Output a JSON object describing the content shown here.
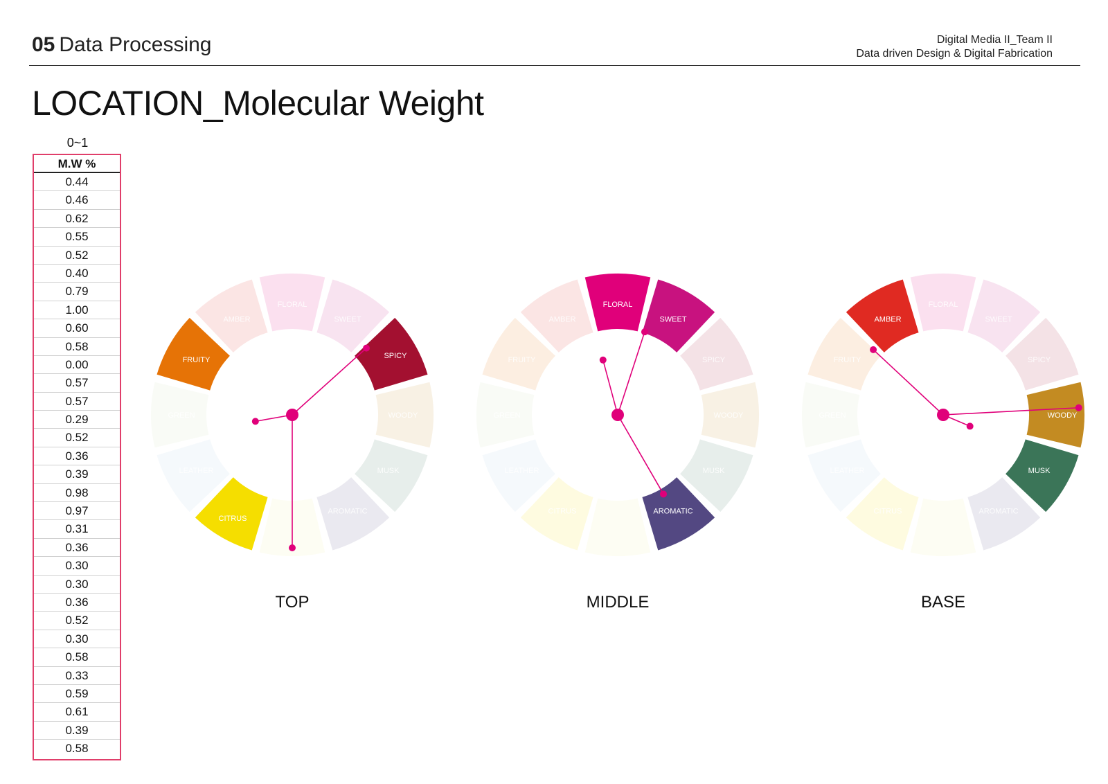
{
  "header": {
    "section_number": "05",
    "section_title": "Data Processing",
    "team_line": "Digital Media II_Team II",
    "course_line": "Data driven Design & Digital Fabrication"
  },
  "page_title": "LOCATION_Molecular Weight",
  "table": {
    "range_label": "0~1",
    "column_header": "M.W %",
    "values": [
      "0.44",
      "0.46",
      "0.62",
      "0.55",
      "0.52",
      "0.40",
      "0.79",
      "1.00",
      "0.60",
      "0.58",
      "0.00",
      "0.57",
      "0.57",
      "0.29",
      "0.52",
      "0.36",
      "0.39",
      "0.98",
      "0.97",
      "0.31",
      "0.36",
      "0.30",
      "0.30",
      "0.36",
      "0.52",
      "0.30",
      "0.58",
      "0.33",
      "0.59",
      "0.61",
      "0.39",
      "0.58"
    ],
    "border_color": "#e03e6a"
  },
  "segments": [
    {
      "label": "FLORAL",
      "color": "#e0007a"
    },
    {
      "label": "SWEET",
      "color": "#c8127f"
    },
    {
      "label": "SPICY",
      "color": "#a31030"
    },
    {
      "label": "WOODY",
      "color": "#c38b22"
    },
    {
      "label": "MUSK",
      "color": "#3b7558"
    },
    {
      "label": "AROMATIC",
      "color": "#534882"
    },
    {
      "label": "",
      "color": "#f2ef9a"
    },
    {
      "label": "CITRUS",
      "color": "#f5de00"
    },
    {
      "label": "LEATHER",
      "color": "#a9c9e4"
    },
    {
      "label": "GREEN",
      "color": "#c9ddb2"
    },
    {
      "label": "FRUITY",
      "color": "#e67306"
    },
    {
      "label": "AMBER",
      "color": "#e02a22"
    }
  ],
  "wheels": [
    {
      "name": "TOP",
      "highlighted": [
        "SPICY",
        "CITRUS",
        "FRUITY"
      ],
      "centered_labels": [
        "SPICY",
        "CITRUS"
      ]
    },
    {
      "name": "MIDDLE",
      "highlighted": [
        "FLORAL",
        "SWEET",
        "AROMATIC"
      ],
      "centered_labels": []
    },
    {
      "name": "BASE",
      "highlighted": [
        "AMBER",
        "WOODY",
        "MUSK"
      ],
      "centered_labels": [
        "WOODY"
      ]
    }
  ],
  "accent_color": "#e0007a"
}
